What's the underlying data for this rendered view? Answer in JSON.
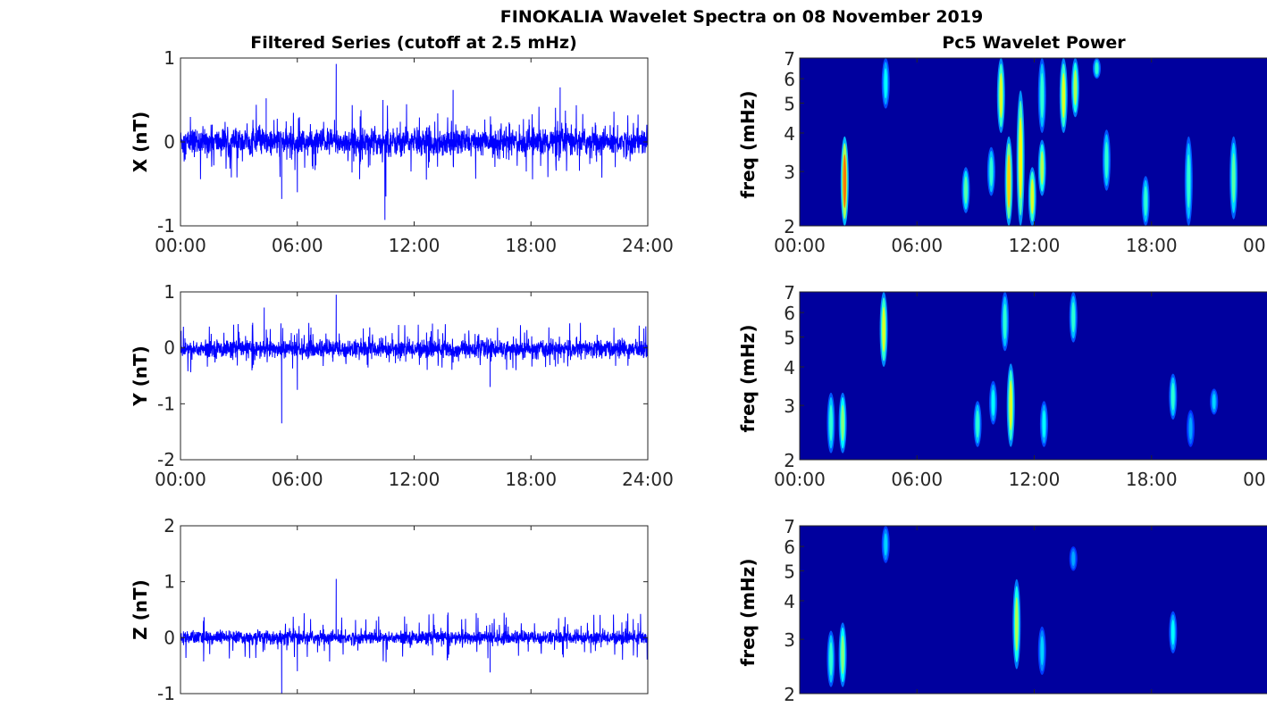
{
  "title": "FINOKALIA Wavelet Spectra on 08 November 2019",
  "chart_data": [
    {
      "type": "line",
      "title": "Filtered Series (cutoff at 2.5 mHz)",
      "xlabel": "",
      "x_range_hours": [
        0,
        24
      ],
      "xticks": [
        "00:00",
        "06:00",
        "12:00",
        "18:00",
        "24:00"
      ],
      "panels": [
        {
          "component": "X",
          "ylabel": "X (nT)",
          "ylim": [
            -1,
            1
          ],
          "yticks": [
            "-1",
            "0",
            "1"
          ],
          "noise_sd": 0.08,
          "color": "#0000ff",
          "spikes": [
            [
              8.0,
              0.93
            ],
            [
              10.5,
              -0.93
            ],
            [
              10.55,
              -0.65
            ],
            [
              5.2,
              -0.68
            ],
            [
              6.0,
              -0.6
            ],
            [
              4.4,
              0.52
            ],
            [
              14.0,
              0.62
            ],
            [
              19.5,
              0.65
            ],
            [
              10.4,
              0.5
            ]
          ]
        },
        {
          "component": "Y",
          "ylabel": "Y (nT)",
          "ylim": [
            -2,
            1
          ],
          "yticks": [
            "-2",
            "-1",
            "0",
            "1"
          ],
          "noise_sd": 0.08,
          "color": "#0000ff",
          "spikes": [
            [
              4.3,
              0.72
            ],
            [
              8.0,
              0.95
            ],
            [
              5.2,
              -1.35
            ],
            [
              6.0,
              -0.75
            ],
            [
              15.9,
              -0.7
            ]
          ]
        },
        {
          "component": "Z",
          "ylabel": "Z (nT)",
          "ylim": [
            -1,
            2
          ],
          "yticks": [
            "-1",
            "0",
            "1",
            "2"
          ],
          "noise_sd": 0.06,
          "color": "#0000ff",
          "spikes": [
            [
              8.0,
              1.05
            ],
            [
              5.2,
              -1.0
            ],
            [
              6.0,
              -0.6
            ],
            [
              15.9,
              -0.62
            ]
          ]
        }
      ]
    },
    {
      "type": "heatmap",
      "title": "Pc5 Wavelet Power",
      "ylabel": "freq (mHz)",
      "yscale": "log",
      "ylim": [
        2,
        7
      ],
      "yticks": [
        "2",
        "3",
        "4",
        "5",
        "6",
        "7"
      ],
      "xticks": [
        "00:00",
        "06:00",
        "12:00",
        "18:00",
        "00:00"
      ],
      "colormap": "jet",
      "panels": [
        {
          "component": "X",
          "blobs": [
            [
              2.3,
              2.0,
              3.9,
              0.75
            ],
            [
              4.4,
              4.8,
              7.0,
              0.3
            ],
            [
              8.5,
              2.2,
              3.1,
              0.4
            ],
            [
              9.8,
              2.5,
              3.6,
              0.35
            ],
            [
              10.3,
              4.0,
              7.0,
              0.55
            ],
            [
              10.7,
              2.0,
              3.9,
              0.65
            ],
            [
              11.3,
              2.0,
              5.5,
              0.6
            ],
            [
              11.9,
              2.0,
              3.1,
              0.55
            ],
            [
              12.4,
              2.5,
              3.8,
              0.5
            ],
            [
              12.4,
              4.0,
              7.0,
              0.35
            ],
            [
              13.5,
              4.0,
              7.0,
              0.55
            ],
            [
              14.1,
              4.5,
              7.0,
              0.5
            ],
            [
              15.2,
              6.0,
              7.0,
              0.35
            ],
            [
              15.7,
              2.6,
              4.1,
              0.35
            ],
            [
              17.7,
              2.0,
              2.9,
              0.35
            ],
            [
              19.9,
              2.0,
              3.9,
              0.35
            ],
            [
              22.2,
              2.1,
              3.9,
              0.4
            ]
          ]
        },
        {
          "component": "Y",
          "blobs": [
            [
              1.6,
              2.1,
              3.3,
              0.35
            ],
            [
              2.2,
              2.1,
              3.3,
              0.45
            ],
            [
              4.3,
              4.0,
              7.0,
              0.55
            ],
            [
              9.1,
              2.2,
              3.1,
              0.35
            ],
            [
              9.9,
              2.6,
              3.6,
              0.3
            ],
            [
              10.5,
              4.5,
              7.0,
              0.35
            ],
            [
              10.8,
              2.2,
              4.1,
              0.55
            ],
            [
              12.5,
              2.2,
              3.1,
              0.3
            ],
            [
              14.0,
              4.8,
              7.0,
              0.35
            ],
            [
              19.1,
              2.7,
              3.8,
              0.35
            ],
            [
              20.0,
              2.2,
              2.9,
              0.2
            ],
            [
              21.2,
              2.8,
              3.4,
              0.25
            ]
          ]
        },
        {
          "component": "Z",
          "blobs": [
            [
              1.6,
              2.1,
              3.2,
              0.35
            ],
            [
              2.2,
              2.1,
              3.4,
              0.45
            ],
            [
              4.4,
              5.3,
              7.0,
              0.25
            ],
            [
              11.1,
              2.4,
              4.7,
              0.5
            ],
            [
              12.4,
              2.3,
              3.3,
              0.25
            ],
            [
              14.0,
              5.0,
              6.0,
              0.2
            ],
            [
              19.1,
              2.7,
              3.7,
              0.3
            ]
          ]
        }
      ]
    }
  ]
}
